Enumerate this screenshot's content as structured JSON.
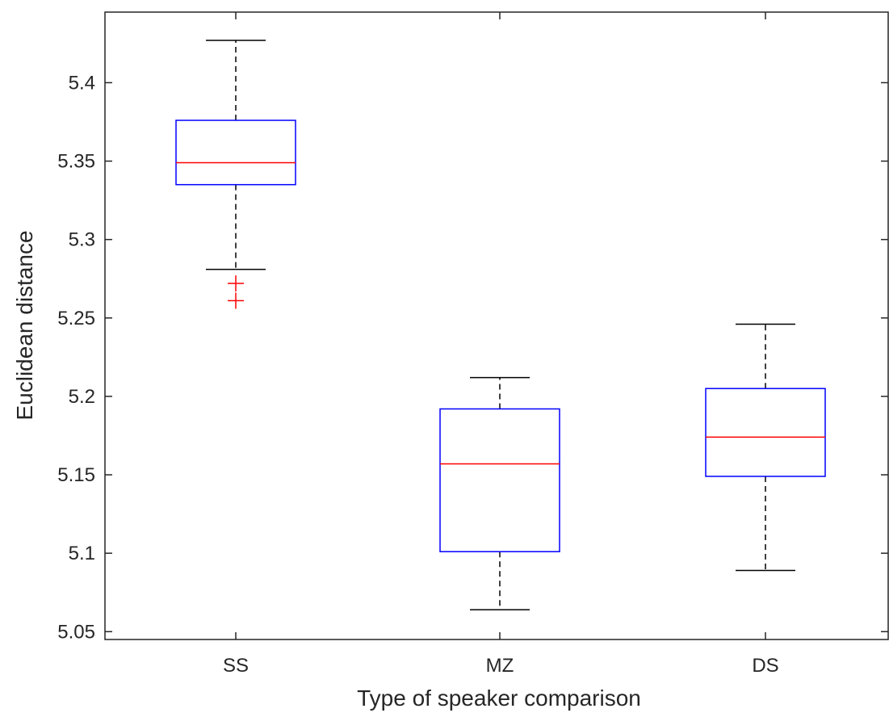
{
  "chart_data": {
    "type": "boxplot",
    "title": "",
    "xlabel": "Type of speaker comparison",
    "ylabel": "Euclidean distance",
    "categories": [
      "SS",
      "MZ",
      "DS"
    ],
    "boxes": [
      {
        "category": "SS",
        "whisker_low": 5.281,
        "q1": 5.335,
        "median": 5.349,
        "q3": 5.376,
        "whisker_high": 5.427,
        "outliers": [
          5.272,
          5.261
        ]
      },
      {
        "category": "MZ",
        "whisker_low": 5.064,
        "q1": 5.101,
        "median": 5.157,
        "q3": 5.192,
        "whisker_high": 5.212,
        "outliers": []
      },
      {
        "category": "DS",
        "whisker_low": 5.089,
        "q1": 5.149,
        "median": 5.174,
        "q3": 5.205,
        "whisker_high": 5.246,
        "outliers": []
      }
    ],
    "ylim": [
      5.045,
      5.445
    ],
    "yticks": [
      "5.05",
      "5.1",
      "5.15",
      "5.2",
      "5.25",
      "5.3",
      "5.35",
      "5.4"
    ],
    "grid": false,
    "colors": {
      "box": "#0000ff",
      "median": "#ff0000",
      "whisker": "#000000",
      "outlier": "#ff0000",
      "axis": "#262626"
    }
  }
}
